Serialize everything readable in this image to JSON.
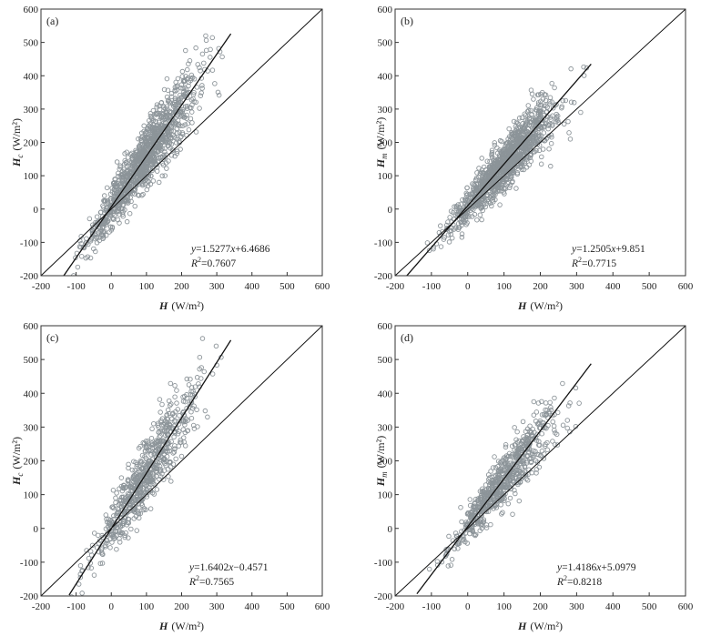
{
  "chart_data": [
    {
      "type": "scatter",
      "panel_label": "(a)",
      "xlabel_sym": "H",
      "xlabel_unit": "(W/m²)",
      "ylabel_sym": "H",
      "ylabel_sub": "c",
      "ylabel_unit": "(W/m²)",
      "xlim": [
        -200,
        600
      ],
      "ylim": [
        -200,
        600
      ],
      "xticks": [
        -200,
        -100,
        0,
        100,
        200,
        300,
        400,
        500,
        600
      ],
      "yticks": [
        -200,
        -100,
        0,
        100,
        200,
        300,
        400,
        500,
        600
      ],
      "fit": {
        "slope": 1.5277,
        "intercept": 6.4686,
        "x_range": [
          -135,
          340
        ]
      },
      "equation_prefix": "y=1.5277",
      "equation_var": "x",
      "equation_suffix": "+6.4686",
      "r2_prefix": "R",
      "r2_sup": "2",
      "r2_suffix": "=0.7607",
      "cloud": {
        "n": 1200,
        "x_mean": 95,
        "x_sd": 75,
        "slope": 1.5277,
        "intercept": 6.4686,
        "noise_sd": 55,
        "seed": 11
      }
    },
    {
      "type": "scatter",
      "panel_label": "(b)",
      "xlabel_sym": "H",
      "xlabel_unit": "(W/m²)",
      "ylabel_sym": "H",
      "ylabel_sub": "m",
      "ylabel_unit": "(W/m²)",
      "xlim": [
        -200,
        600
      ],
      "ylim": [
        -200,
        600
      ],
      "xticks": [
        -200,
        -100,
        0,
        100,
        200,
        300,
        400,
        500,
        600
      ],
      "yticks": [
        -200,
        -100,
        0,
        100,
        200,
        300,
        400,
        500,
        600
      ],
      "fit": {
        "slope": 1.2505,
        "intercept": 9.851,
        "x_range": [
          -180,
          340
        ]
      },
      "equation_prefix": "y=1.2505",
      "equation_var": "x",
      "equation_suffix": "+9.851",
      "r2_prefix": "R",
      "r2_sup": "2",
      "r2_suffix": "=0.7715",
      "cloud": {
        "n": 1200,
        "x_mean": 100,
        "x_sd": 70,
        "slope": 1.2505,
        "intercept": 9.851,
        "noise_sd": 45,
        "seed": 23
      }
    },
    {
      "type": "scatter",
      "panel_label": "(c)",
      "xlabel_sym": "H",
      "xlabel_unit": "(W/m²)",
      "ylabel_sym": "H",
      "ylabel_sub": "c",
      "ylabel_unit": "(W/m²)",
      "xlim": [
        -200,
        600
      ],
      "ylim": [
        -200,
        600
      ],
      "xticks": [
        -200,
        -100,
        0,
        100,
        200,
        300,
        400,
        500,
        600
      ],
      "yticks": [
        -200,
        -100,
        0,
        100,
        200,
        300,
        400,
        500,
        600
      ],
      "fit": {
        "slope": 1.6402,
        "intercept": -0.4571,
        "x_range": [
          -120,
          340
        ]
      },
      "equation_prefix": "y=1.6402",
      "equation_var": "x",
      "equation_suffix": "−0.4571",
      "r2_prefix": "R",
      "r2_sup": "2",
      "r2_suffix": "=0.7565",
      "cloud": {
        "n": 700,
        "x_mean": 95,
        "x_sd": 75,
        "slope": 1.6402,
        "intercept": -0.4571,
        "noise_sd": 60,
        "seed": 37
      }
    },
    {
      "type": "scatter",
      "panel_label": "(d)",
      "xlabel_sym": "H",
      "xlabel_unit": "(W/m²)",
      "ylabel_sym": "H",
      "ylabel_sub": "m",
      "ylabel_unit": "(W/m²)",
      "xlim": [
        -200,
        600
      ],
      "ylim": [
        -200,
        600
      ],
      "xticks": [
        -200,
        -100,
        0,
        100,
        200,
        300,
        400,
        500,
        600
      ],
      "yticks": [
        -200,
        -100,
        0,
        100,
        200,
        300,
        400,
        500,
        600
      ],
      "fit": {
        "slope": 1.4186,
        "intercept": 5.0979,
        "x_range": [
          -140,
          340
        ]
      },
      "equation_prefix": "y=1.4186",
      "equation_var": "x",
      "equation_suffix": "+5.0979",
      "r2_prefix": "R",
      "r2_sup": "2",
      "r2_suffix": "=0.8218",
      "cloud": {
        "n": 700,
        "x_mean": 100,
        "x_sd": 72,
        "slope": 1.4186,
        "intercept": 5.0979,
        "noise_sd": 48,
        "seed": 53
      }
    }
  ],
  "style": {
    "marker_color": "#8c9499",
    "line_color": "#111111",
    "axis_color": "#333333"
  }
}
